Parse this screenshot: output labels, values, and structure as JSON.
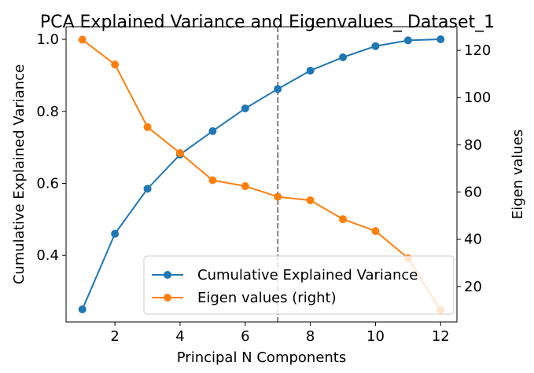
{
  "chart_data": {
    "type": "line",
    "title": "PCA Explained Variance and Eigenvalues_ Dataset_1",
    "xlabel": "Principal N Components",
    "ylabel": "Cumulative Explained Variance",
    "ylabel_right": "Eigen values",
    "xlim": [
      0.5,
      12.5
    ],
    "ylim": [
      0.215,
      1.035
    ],
    "ylim_right": [
      5,
      130
    ],
    "x_ticks": [
      2,
      4,
      6,
      8,
      10,
      12
    ],
    "y_ticks": [
      0.4,
      0.6,
      0.8,
      1.0
    ],
    "y_tick_labels": [
      "0.4",
      "0.6",
      "0.8",
      "1.0"
    ],
    "y_right_ticks": [
      20,
      40,
      60,
      80,
      100,
      120
    ],
    "vline_x": 7,
    "x": [
      1,
      2,
      3,
      4,
      5,
      6,
      7,
      8,
      9,
      10,
      11,
      12
    ],
    "series": [
      {
        "name": "Cumulative Explained Variance",
        "axis": "left",
        "color": "#1f77b4",
        "values": [
          0.25,
          0.46,
          0.585,
          0.68,
          0.745,
          0.808,
          0.862,
          0.913,
          0.95,
          0.981,
          0.997,
          1.0
        ]
      },
      {
        "name": "Eigen values (right)",
        "axis": "right",
        "color": "#ff7f0e",
        "values": [
          124.5,
          114,
          87.5,
          76.5,
          65,
          62.5,
          58,
          56.5,
          48.5,
          43.5,
          32,
          10
        ]
      }
    ],
    "grid": false,
    "legend_position": "lower-right"
  }
}
